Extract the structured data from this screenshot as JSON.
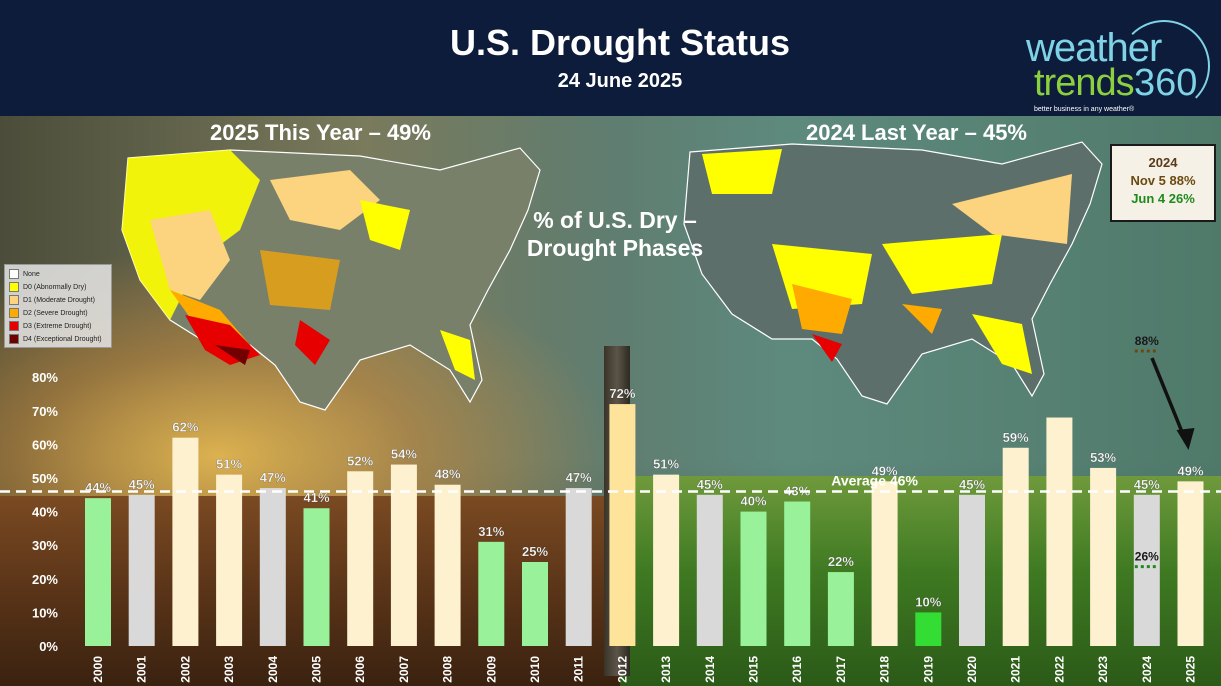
{
  "header": {
    "title": "U.S. Drought Status",
    "subtitle": "24 June 2025",
    "logo": {
      "word1": "weather",
      "word2": "trends",
      "word3": "360",
      "tagline": "better business in any weather®"
    }
  },
  "maps": {
    "left_caption": "2025 This Year – 49%",
    "right_caption": "2024 Last Year – 45%",
    "legend": [
      {
        "label": "None",
        "color": "#ffffff"
      },
      {
        "label": "D0 (Abnormally Dry)",
        "color": "#ffff00"
      },
      {
        "label": "D1 (Moderate Drought)",
        "color": "#fcd37f"
      },
      {
        "label": "D2 (Severe Drought)",
        "color": "#ffaa00"
      },
      {
        "label": "D3 (Extreme Drought)",
        "color": "#e60000"
      },
      {
        "label": "D4 (Exceptional Drought)",
        "color": "#730000"
      }
    ]
  },
  "chart_title": {
    "line1": "% of U.S. Dry –",
    "line2": "Drought Phases"
  },
  "callout": {
    "year": "2024",
    "nov": "Nov 5 88%",
    "jun": "Jun 4 26%"
  },
  "colors": {
    "high": "#fdf1cf",
    "high_2012": "#fde49a",
    "average_gray": "#d9d9d9",
    "low": "#99f299",
    "low_2019": "#33dd33"
  },
  "chart_data": {
    "type": "bar",
    "categories": [
      "2000",
      "2001",
      "2002",
      "2003",
      "2004",
      "2005",
      "2006",
      "2007",
      "2008",
      "2009",
      "2010",
      "2011",
      "2012",
      "2013",
      "2014",
      "2015",
      "2016",
      "2017",
      "2018",
      "2019",
      "2020",
      "2021",
      "2022",
      "2023",
      "2024",
      "2025"
    ],
    "values": [
      44,
      45,
      62,
      51,
      47,
      41,
      52,
      54,
      48,
      31,
      25,
      47,
      72,
      51,
      45,
      40,
      43,
      22,
      49,
      10,
      45,
      59,
      68,
      53,
      45,
      49
    ],
    "value_labels": [
      "44%",
      "45%",
      "62%",
      "51%",
      "47%",
      "41%",
      "52%",
      "54%",
      "48%",
      "31%",
      "25%",
      "47%",
      "72%",
      "51%",
      "45%",
      "40%",
      "43%",
      "22%",
      "49%",
      "10%",
      "45%",
      "59%",
      "",
      "53%",
      "45%",
      "49%"
    ],
    "bar_colors": [
      "low",
      "average_gray",
      "high",
      "high",
      "average_gray",
      "low",
      "high",
      "high",
      "high",
      "low",
      "low",
      "average_gray",
      "high_2012",
      "high",
      "average_gray",
      "low",
      "low",
      "low",
      "high",
      "low_2019",
      "average_gray",
      "high",
      "high",
      "high",
      "average_gray",
      "high"
    ],
    "ylim": [
      0,
      80
    ],
    "yticks": [
      "0%",
      "10%",
      "20%",
      "30%",
      "40%",
      "50%",
      "60%",
      "70%",
      "80%"
    ],
    "average": {
      "value": 46,
      "label": "Average 46%"
    },
    "annotations": [
      {
        "category": "2024",
        "value": 88,
        "label": "88%",
        "color": "#6a4a10"
      },
      {
        "category": "2024",
        "value": 26,
        "label": "26%",
        "color": "#1e8a1e"
      }
    ],
    "grid": false
  }
}
